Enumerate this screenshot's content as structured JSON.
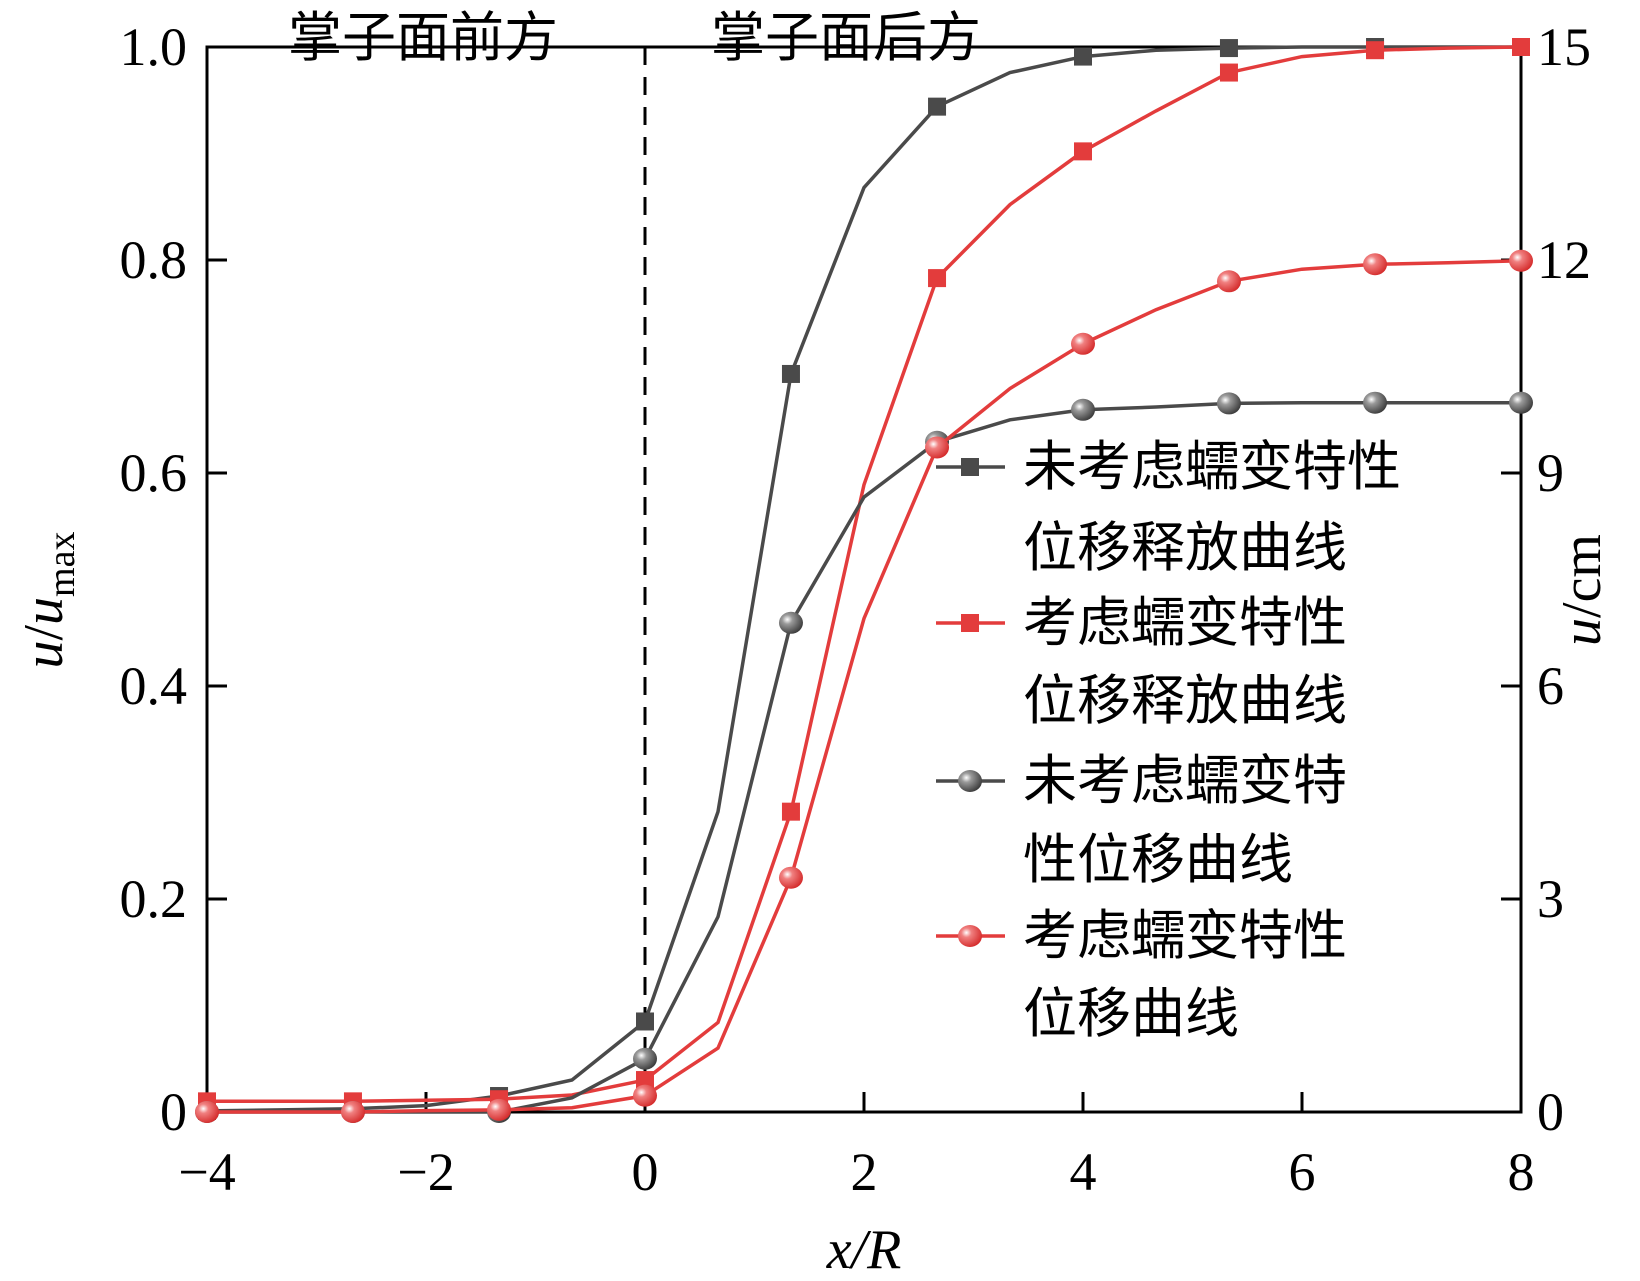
{
  "chart_data": {
    "type": "line",
    "xlabel": "x/R",
    "ylabel_left": {
      "main": "u",
      "sep": "/",
      "base": "u",
      "sub": "max"
    },
    "ylabel_right": {
      "main": "u",
      "sep": "/",
      "unit": "cm"
    },
    "xlim": [
      -4,
      8
    ],
    "ylim_left": [
      0,
      1.0
    ],
    "ylim_right": [
      0,
      15
    ],
    "x_ticks": [
      "−4",
      "−2",
      "0",
      "2",
      "4",
      "6",
      "8"
    ],
    "x_tick_values": [
      -4,
      -2,
      0,
      2,
      4,
      6,
      8
    ],
    "y_left_ticks": [
      "0",
      "0.2",
      "0.4",
      "0.6",
      "0.8",
      "1.0"
    ],
    "y_left_tick_values": [
      0,
      0.2,
      0.4,
      0.6,
      0.8,
      1.0
    ],
    "y_right_ticks": [
      "0",
      "3",
      "6",
      "9",
      "12",
      "15"
    ],
    "y_right_tick_values": [
      0,
      3,
      6,
      9,
      12,
      15
    ],
    "grid": false,
    "annotations": {
      "before_face": "掌子面前方",
      "after_face": "掌子面后方",
      "face_line_x": 0
    },
    "legend_placement": "right",
    "x": [
      -4,
      -3.333,
      -2.667,
      -2,
      -1.333,
      -0.667,
      0,
      0.667,
      1.333,
      2,
      2.667,
      3.333,
      4,
      4.667,
      5.333,
      6,
      6.667,
      7.333,
      8
    ],
    "series": [
      {
        "name_lines": [
          "未考虑蠕变特性",
          "位移释放曲线"
        ],
        "axis": "left",
        "marker": "square",
        "color": "#4a4a4a",
        "values": [
          0.001,
          0.002,
          0.003,
          0.006,
          0.015,
          0.03,
          0.085,
          0.282,
          0.693,
          0.868,
          0.944,
          0.976,
          0.991,
          0.997,
          0.999,
          1.0,
          1.0,
          1.0,
          1.0
        ]
      },
      {
        "name_lines": [
          "考虑蠕变特性",
          "位移释放曲线"
        ],
        "axis": "left",
        "marker": "square",
        "color": "#e33c3c",
        "values": [
          0.01,
          0.01,
          0.01,
          0.011,
          0.012,
          0.016,
          0.03,
          0.084,
          0.282,
          0.589,
          0.783,
          0.852,
          0.902,
          0.94,
          0.976,
          0.991,
          0.997,
          0.999,
          1.0
        ]
      },
      {
        "name_lines": [
          "未考虑蠕变特",
          "性位移曲线"
        ],
        "axis": "right",
        "marker": "sphere",
        "color": "#4a4a4a",
        "values": [
          0,
          0,
          0,
          0,
          0,
          0.2,
          0.75,
          2.75,
          6.89,
          8.66,
          9.44,
          9.75,
          9.89,
          9.93,
          9.98,
          9.99,
          9.99,
          9.99,
          9.99
        ]
      },
      {
        "name_lines": [
          "考虑蠕变特性",
          "位移曲线"
        ],
        "axis": "right",
        "marker": "sphere",
        "color": "#e33c3c",
        "values": [
          0,
          0,
          0,
          0.02,
          0.03,
          0.06,
          0.23,
          0.9,
          3.3,
          6.95,
          9.36,
          10.19,
          10.82,
          11.3,
          11.7,
          11.87,
          11.94,
          11.96,
          11.99
        ]
      }
    ]
  }
}
